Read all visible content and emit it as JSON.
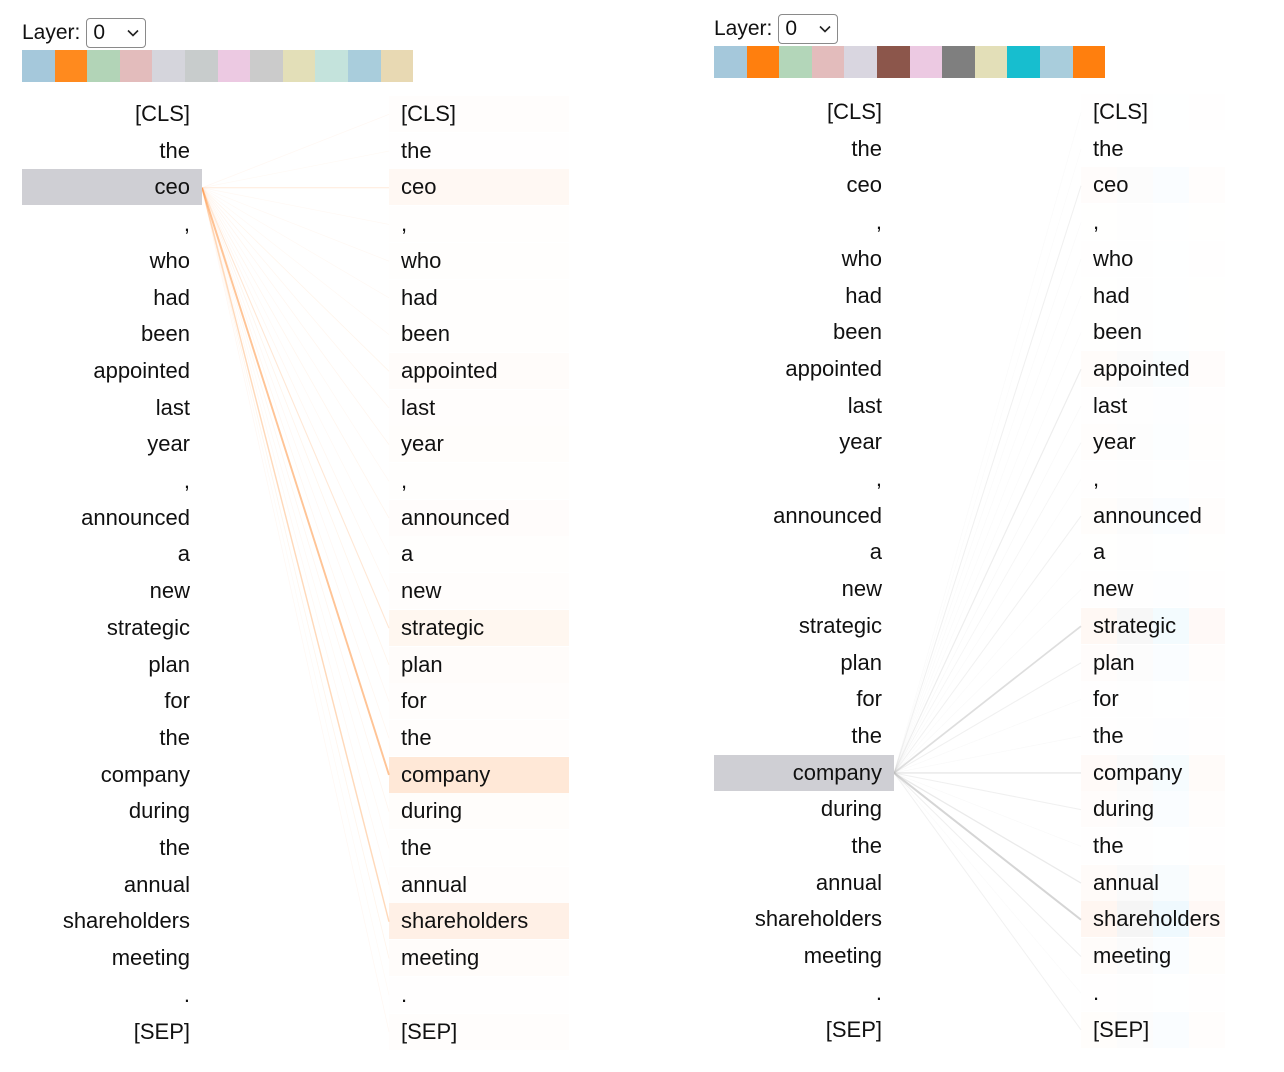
{
  "tokens": [
    "[CLS]",
    "the",
    "ceo",
    ",",
    "who",
    "had",
    "been",
    "appointed",
    "last",
    "year",
    ",",
    "announced",
    "a",
    "new",
    "strategic",
    "plan",
    "for",
    "the",
    "company",
    "during",
    "the",
    "annual",
    "shareholders",
    "meeting",
    ".",
    "[SEP]"
  ],
  "layer_label": "Layer:",
  "panels": [
    {
      "id": "left",
      "selected_layer": "0",
      "selected_token_index": 2,
      "head_colors": [
        "#a5c8db",
        "#ff8a1e",
        "#b2d4b7",
        "#e3bcbc",
        "#d5d5dc",
        "#c8cccc",
        "#ecc9e2",
        "#cbcbcb",
        "#e3dfb8",
        "#c4e3dc",
        "#a9cddc",
        "#e8d9b3"
      ],
      "line_color": "#ff9a4a",
      "attention": [
        0.04,
        0.02,
        0.18,
        0.03,
        0.03,
        0.03,
        0.03,
        0.08,
        0.05,
        0.06,
        0.03,
        0.07,
        0.03,
        0.05,
        0.22,
        0.08,
        0.04,
        0.05,
        0.6,
        0.06,
        0.03,
        0.04,
        0.38,
        0.08,
        0.02,
        0.04
      ]
    },
    {
      "id": "right",
      "selected_layer": "0",
      "selected_token_index": 18,
      "head_colors": [
        "#a5c8db",
        "#ff7f0e",
        "#b3d6b9",
        "#e3bcbc",
        "#d9d6e0",
        "#8c564b",
        "#ecc9e2",
        "#7f7f7f",
        "#e3dfb8",
        "#17becf",
        "#a9cddc",
        "#ff7f0e"
      ],
      "line_color": "#bbbbbb",
      "attention": [
        0.04,
        0.02,
        0.2,
        0.03,
        0.04,
        0.03,
        0.03,
        0.25,
        0.06,
        0.12,
        0.04,
        0.18,
        0.03,
        0.06,
        0.5,
        0.2,
        0.05,
        0.06,
        0.35,
        0.2,
        0.05,
        0.3,
        0.65,
        0.22,
        0.04,
        0.18
      ]
    }
  ]
}
